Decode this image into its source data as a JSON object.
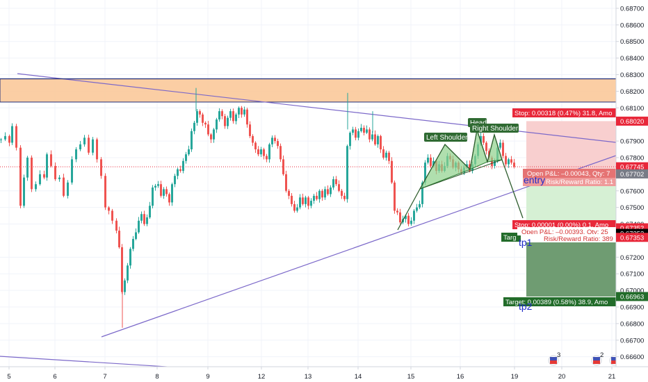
{
  "colors": {
    "up": "#26a69a",
    "down": "#ef5350",
    "resistance_zone": "#fbc99a",
    "resistance_border": "#1f2d7a",
    "trendline": "#7b68c9",
    "pattern_fill": "#8fd18b",
    "stop_fill": "#f8cfcf",
    "target_fill_1": "#d6f0d4",
    "target_fill_2": "#6f9c72",
    "stop_badge": "#e8283a",
    "target_badge": "#226c2a",
    "last_price": "#e8283a",
    "level_text": "#1f2bc8"
  },
  "chart_data": {
    "type": "candlestick",
    "x_ticks": [
      "5",
      "6",
      "7",
      "8",
      "9",
      "12",
      "13",
      "14",
      "15",
      "16",
      "19",
      "20",
      "21"
    ],
    "y_ticks": [
      "0.68700",
      "0.68600",
      "0.68500",
      "0.68400",
      "0.68300",
      "0.68200",
      "0.68100",
      "0.67900",
      "0.67800",
      "0.67600",
      "0.67500",
      "0.67400",
      "0.67200",
      "0.67100",
      "0.67000",
      "0.66900",
      "0.66800",
      "0.66700",
      "0.66600"
    ],
    "ylim": [
      0.6654,
      0.6875
    ],
    "price_badges": [
      {
        "label": "0.68020",
        "value": 0.6802,
        "kind": "stop"
      },
      {
        "label": "0.67745",
        "value": 0.67745,
        "kind": "last"
      },
      {
        "label": "0.67702",
        "value": 0.67702,
        "kind": "entry"
      },
      {
        "label": "0.67352",
        "value": 0.67352,
        "kind": "stop"
      },
      {
        "label": "0.67352",
        "value": 0.67352,
        "kind": "entry"
      },
      {
        "label": "0.67353",
        "value": 0.67353,
        "kind": "stop"
      },
      {
        "label": "0.66963",
        "value": 0.66963,
        "kind": "target"
      }
    ],
    "resistance_zone": [
      0.68135,
      0.68275
    ],
    "pattern_labels": [
      "Left Shoulder",
      "Head",
      "Right Shoulder"
    ],
    "positions": {
      "short_1": {
        "stop": "Stop: 0.00318 (0.47%) 31.8, Amo",
        "pnl": "Open P&L: –0.00043, Qty: 7",
        "rr": "Risk/Reward Ratio: 1.1",
        "target": "Targ",
        "entry_value": 0.67702,
        "stop_value": 0.6802,
        "target_value": 0.67352
      },
      "short_2": {
        "stop": "Stop: 0.00001 (0.00%) 0.1, Amo",
        "pnl": "Open P&L: –0.00393, Qty: 25",
        "rr": "Risk/Reward Ratio: 389",
        "target": "Target: 0.00389 (0.58%) 38.9, Amo",
        "entry_value": 0.67352,
        "stop_value": 0.67353,
        "target_value": 0.66963
      }
    },
    "level_labels": [
      "entry",
      "tp1",
      "tp2"
    ],
    "event_markers": [
      "3",
      "2",
      ""
    ]
  }
}
